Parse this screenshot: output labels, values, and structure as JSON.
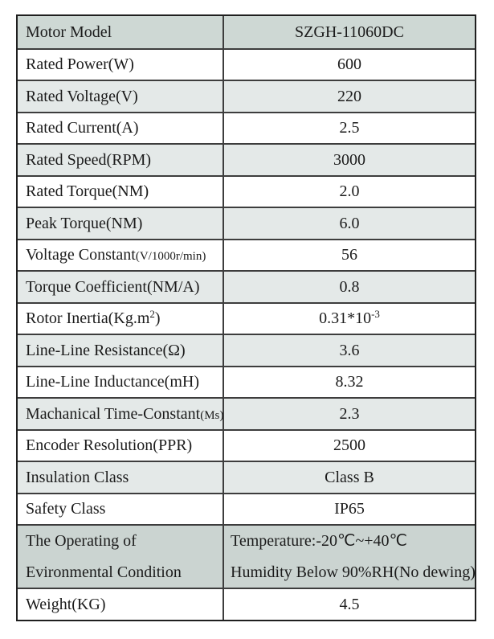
{
  "colors": {
    "header_row_bg": "#ced8d4",
    "alt_row_bg": "#e4e9e8",
    "white_row_bg": "#ffffff",
    "env_row_bg": "#cbd4d1",
    "border_outer": "#1f1f1f",
    "border_inner": "#3d3d3d",
    "text": "#1b1b1b"
  },
  "spec_table": {
    "columns": [
      "parameter",
      "value"
    ],
    "rows": [
      {
        "name": "motor-model",
        "bg": "header",
        "h": "single",
        "value_align": "center",
        "label": [
          [
            {
              "t": "Motor Model"
            }
          ]
        ],
        "value": [
          [
            {
              "t": "SZGH-11060DC"
            }
          ]
        ]
      },
      {
        "name": "rated-power",
        "bg": "white",
        "h": "single",
        "value_align": "center",
        "label": [
          [
            {
              "t": "Rated Power(W)"
            }
          ]
        ],
        "value": [
          [
            {
              "t": "600"
            }
          ]
        ]
      },
      {
        "name": "rated-voltage",
        "bg": "alt",
        "h": "single",
        "value_align": "center",
        "label": [
          [
            {
              "t": "Rated Voltage(V)"
            }
          ]
        ],
        "value": [
          [
            {
              "t": "220"
            }
          ]
        ]
      },
      {
        "name": "rated-current",
        "bg": "white",
        "h": "single",
        "value_align": "center",
        "label": [
          [
            {
              "t": "Rated Current(A)"
            }
          ]
        ],
        "value": [
          [
            {
              "t": "2.5"
            }
          ]
        ]
      },
      {
        "name": "rated-speed",
        "bg": "alt",
        "h": "single",
        "value_align": "center",
        "label": [
          [
            {
              "t": "Rated Speed(RPM)"
            }
          ]
        ],
        "value": [
          [
            {
              "t": "3000"
            }
          ]
        ]
      },
      {
        "name": "rated-torque",
        "bg": "white",
        "h": "single",
        "value_align": "center",
        "label": [
          [
            {
              "t": "Rated Torque(NM)"
            }
          ]
        ],
        "value": [
          [
            {
              "t": "2.0"
            }
          ]
        ]
      },
      {
        "name": "peak-torque",
        "bg": "alt",
        "h": "single",
        "value_align": "center",
        "label": [
          [
            {
              "t": "Peak Torque(NM)"
            }
          ]
        ],
        "value": [
          [
            {
              "t": "6.0"
            }
          ]
        ]
      },
      {
        "name": "voltage-constant",
        "bg": "white",
        "h": "single",
        "value_align": "center",
        "label": [
          [
            {
              "t": "Voltage Constant"
            },
            {
              "t": "(V/1000r/min)",
              "s": "small"
            }
          ]
        ],
        "value": [
          [
            {
              "t": "56"
            }
          ]
        ]
      },
      {
        "name": "torque-coefficient",
        "bg": "alt",
        "h": "single",
        "value_align": "center",
        "label": [
          [
            {
              "t": "Torque Coefficient(NM/A)"
            }
          ]
        ],
        "value": [
          [
            {
              "t": "0.8"
            }
          ]
        ]
      },
      {
        "name": "rotor-inertia",
        "bg": "white",
        "h": "single",
        "value_align": "center",
        "label": [
          [
            {
              "t": "Rotor Inertia(Kg.m"
            },
            {
              "t": "2",
              "s": "sup"
            },
            {
              "t": ")"
            }
          ]
        ],
        "value": [
          [
            {
              "t": "0.31*10"
            },
            {
              "t": "-3",
              "s": "sup"
            }
          ]
        ]
      },
      {
        "name": "line-line-resistance",
        "bg": "alt",
        "h": "single",
        "value_align": "center",
        "label": [
          [
            {
              "t": "Line-Line Resistance(Ω)"
            }
          ]
        ],
        "value": [
          [
            {
              "t": "3.6"
            }
          ]
        ]
      },
      {
        "name": "line-line-inductance",
        "bg": "white",
        "h": "single",
        "value_align": "center",
        "label": [
          [
            {
              "t": "Line-Line Inductance(mH)"
            }
          ]
        ],
        "value": [
          [
            {
              "t": "8.32"
            }
          ]
        ]
      },
      {
        "name": "machanical-time-constant",
        "bg": "alt",
        "h": "single",
        "value_align": "center",
        "label": [
          [
            {
              "t": "Machanical Time-Constant"
            },
            {
              "t": "(Ms)",
              "s": "small"
            }
          ]
        ],
        "value": [
          [
            {
              "t": "2.3"
            }
          ]
        ]
      },
      {
        "name": "encoder-resolution",
        "bg": "white",
        "h": "single",
        "value_align": "center",
        "label": [
          [
            {
              "t": "Encoder Resolution(PPR)"
            }
          ]
        ],
        "value": [
          [
            {
              "t": "2500"
            }
          ]
        ]
      },
      {
        "name": "insulation-class",
        "bg": "alt",
        "h": "single",
        "value_align": "center",
        "label": [
          [
            {
              "t": "Insulation Class"
            }
          ]
        ],
        "value": [
          [
            {
              "t": "Class B"
            }
          ]
        ]
      },
      {
        "name": "safety-class",
        "bg": "white",
        "h": "single",
        "value_align": "center",
        "label": [
          [
            {
              "t": "Safety Class"
            }
          ]
        ],
        "value": [
          [
            {
              "t": "IP65"
            }
          ]
        ]
      },
      {
        "name": "environmental-condition",
        "bg": "env",
        "h": "double",
        "value_align": "left",
        "label": [
          [
            {
              "t": "The Operating of"
            }
          ],
          [
            {
              "t": "Evironmental Condition"
            }
          ]
        ],
        "value": [
          [
            {
              "t": "Temperature:-20℃~+40℃"
            }
          ],
          [
            {
              "t": "Humidity Below 90%RH(No dewing)"
            }
          ]
        ]
      },
      {
        "name": "weight",
        "bg": "white",
        "h": "single",
        "value_align": "center",
        "label": [
          [
            {
              "t": "Weight(KG)"
            }
          ]
        ],
        "value": [
          [
            {
              "t": "4.5"
            }
          ]
        ]
      }
    ]
  }
}
